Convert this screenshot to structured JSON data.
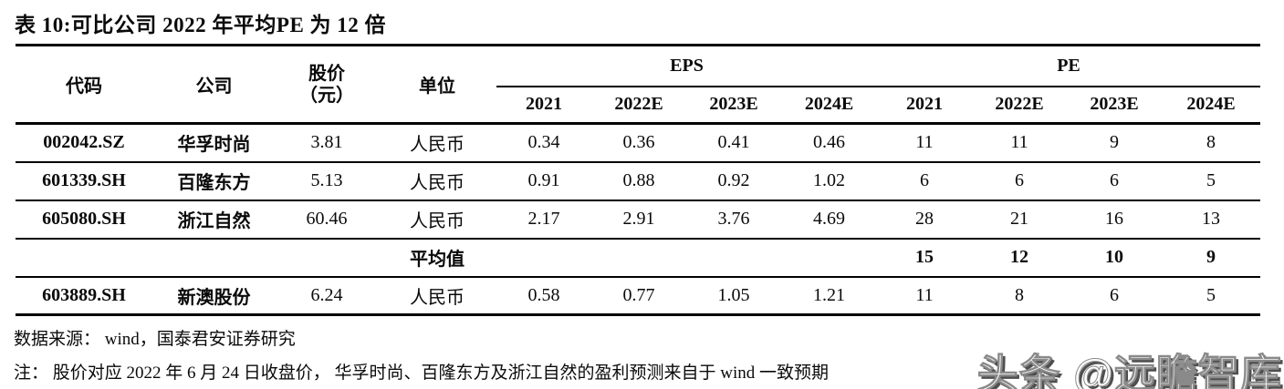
{
  "title": "表 10:可比公司 2022 年平均PE 为 12 倍",
  "table": {
    "col_headers": {
      "code": "代码",
      "company": "公司",
      "price_line1": "股价",
      "price_line2": "（元）",
      "unit": "单位",
      "eps_group": "EPS",
      "pe_group": "PE",
      "eps_years": [
        "2021",
        "2022E",
        "2023E",
        "2024E"
      ],
      "pe_years": [
        "2021",
        "2022E",
        "2023E",
        "2024E"
      ]
    },
    "rows": [
      {
        "code": "002042.SZ",
        "company": "华孚时尚",
        "price": "3.81",
        "unit": "人民币",
        "eps": [
          "0.34",
          "0.36",
          "0.41",
          "0.46"
        ],
        "pe": [
          "11",
          "11",
          "9",
          "8"
        ],
        "is_average": false
      },
      {
        "code": "601339.SH",
        "company": "百隆东方",
        "price": "5.13",
        "unit": "人民币",
        "eps": [
          "0.91",
          "0.88",
          "0.92",
          "1.02"
        ],
        "pe": [
          "6",
          "6",
          "6",
          "5"
        ],
        "is_average": false
      },
      {
        "code": "605080.SH",
        "company": "浙江自然",
        "price": "60.46",
        "unit": "人民币",
        "eps": [
          "2.17",
          "2.91",
          "3.76",
          "4.69"
        ],
        "pe": [
          "28",
          "21",
          "16",
          "13"
        ],
        "is_average": false
      },
      {
        "code": "",
        "company": "",
        "price": "",
        "unit": "平均值",
        "eps": [
          "",
          "",
          "",
          ""
        ],
        "pe": [
          "15",
          "12",
          "10",
          "9"
        ],
        "is_average": true
      },
      {
        "code": "603889.SH",
        "company": "新澳股份",
        "price": "6.24",
        "unit": "人民币",
        "eps": [
          "0.58",
          "0.77",
          "1.05",
          "1.21"
        ],
        "pe": [
          "11",
          "8",
          "6",
          "5"
        ],
        "is_average": false
      }
    ]
  },
  "footer": {
    "source": "数据来源： wind，国泰君安证券研究",
    "note": "注： 股价对应 2022 年 6 月 24 日收盘价， 华孚时尚、百隆东方及浙江自然的盈利预测来自于 wind 一致预期"
  },
  "watermark": "头条 @远瞻智库"
}
